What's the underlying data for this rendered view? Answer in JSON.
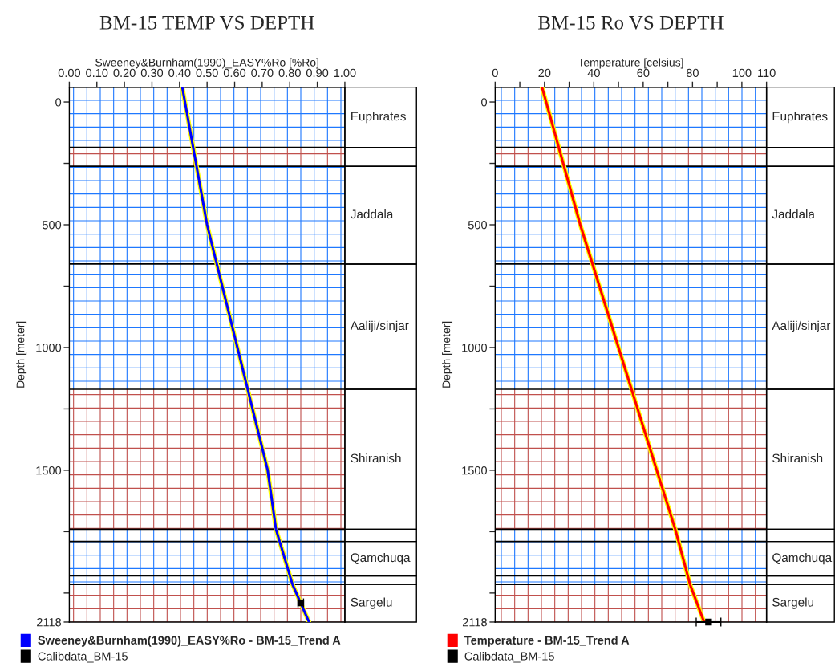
{
  "chart_data": [
    {
      "type": "line",
      "title": "BM-15 TEMP VS DEPTH",
      "xlabel": "Sweeney&Burnham(1990)_EASY%Ro [%Ro]",
      "ylabel": "Depth [meter]",
      "xlim": [
        0,
        1
      ],
      "xticks": [
        {
          "value": 0,
          "label": "0.00"
        },
        {
          "value": 0.1,
          "label": "0.10"
        },
        {
          "value": 0.2,
          "label": "0.20"
        },
        {
          "value": 0.3,
          "label": "0.30"
        },
        {
          "value": 0.4,
          "label": "0.40"
        },
        {
          "value": 0.5,
          "label": "0.50"
        },
        {
          "value": 0.6,
          "label": "0.60"
        },
        {
          "value": 0.7,
          "label": "0.70"
        },
        {
          "value": 0.8,
          "label": "0.80"
        },
        {
          "value": 0.9,
          "label": "0.90"
        },
        {
          "value": 1,
          "label": "1.00"
        }
      ],
      "ylim": [
        2118,
        -60
      ],
      "yticks": [
        0,
        {
          "value": 250,
          "label": null
        },
        500,
        {
          "value": 750,
          "label": null
        },
        1000,
        {
          "value": 1250,
          "label": null
        },
        1500,
        {
          "value": 1750,
          "label": null
        },
        {
          "value": 2000,
          "label": null
        },
        2118
      ],
      "series": [
        {
          "name": "Sweeney&Burnham(1990)_EASY%Ro - BM-15_Trend A",
          "color": "#0000ff",
          "x": [
            0.41,
            0.5,
            0.61,
            0.72,
            0.75,
            0.81,
            0.87
          ],
          "values": [
            -60,
            500,
            1000,
            1500,
            1740,
            1965,
            2118
          ]
        },
        {
          "name": "Calibdata_BM-15",
          "color": "#000000",
          "type": "scatter",
          "x": [
            0.84
          ],
          "values": [
            2040
          ],
          "xerrors": [
            0.01
          ]
        }
      ],
      "bands": [
        {
          "axis": "y",
          "from": -60,
          "to": 185,
          "label": "Euphrates",
          "color": "#1e78ff"
        },
        {
          "axis": "y",
          "from": 185,
          "to": 262,
          "label": null,
          "color": "#c0504d"
        },
        {
          "axis": "y",
          "from": 262,
          "to": 660,
          "label": "Jaddala",
          "color": "#1e78ff"
        },
        {
          "axis": "y",
          "from": 660,
          "to": 1170,
          "label": "Aaliji/sinjar",
          "color": "#1e78ff"
        },
        {
          "axis": "y",
          "from": 1170,
          "to": 1740,
          "label": "Shiranish",
          "color": "#c0504d"
        },
        {
          "axis": "y",
          "from": 1740,
          "to": 1790,
          "label": null,
          "color": "#1e78ff"
        },
        {
          "axis": "y",
          "from": 1790,
          "to": 1930,
          "label": "Qamchuqa",
          "color": "#1e78ff"
        },
        {
          "axis": "y",
          "from": 1930,
          "to": 1965,
          "label": null,
          "color": "#1e78ff"
        },
        {
          "axis": "y",
          "from": 1965,
          "to": 2118,
          "label": "Sargelu",
          "color": "#c0504d"
        }
      ],
      "legend": "bottom left",
      "grid": false
    },
    {
      "type": "line",
      "title": "BM-15 Ro VS DEPTH",
      "xlabel": "Temperature [celsius]",
      "ylabel": "Depth [meter]",
      "xlim": [
        0,
        110
      ],
      "xticks": [
        0,
        {
          "value": 10,
          "label": null
        },
        20,
        {
          "value": 30,
          "label": null
        },
        40,
        {
          "value": 50,
          "label": null
        },
        60,
        {
          "value": 70,
          "label": null
        },
        80,
        {
          "value": 90,
          "label": null
        },
        100,
        110
      ],
      "ylim": [
        2118,
        -60
      ],
      "yticks": [
        0,
        {
          "value": 250,
          "label": null
        },
        500,
        {
          "value": 750,
          "label": null
        },
        1000,
        {
          "value": 1250,
          "label": null
        },
        1500,
        {
          "value": 1750,
          "label": null
        },
        {
          "value": 2000,
          "label": null
        },
        2118
      ],
      "series": [
        {
          "name": "Temperature - BM-15_Trend A",
          "color": "#ff0000",
          "x": [
            19,
            34.5,
            50,
            65.5,
            73,
            79,
            84.7
          ],
          "values": [
            -60,
            500,
            1000,
            1500,
            1740,
            1965,
            2118
          ]
        },
        {
          "name": "Calibdata_BM-15",
          "color": "#000000",
          "type": "scatter",
          "x": [
            86.5
          ],
          "values": [
            2118
          ],
          "xerrors": [
            5
          ]
        }
      ],
      "bands": [
        {
          "axis": "y",
          "from": -60,
          "to": 185,
          "label": "Euphrates",
          "color": "#1e78ff"
        },
        {
          "axis": "y",
          "from": 185,
          "to": 262,
          "label": null,
          "color": "#c0504d"
        },
        {
          "axis": "y",
          "from": 262,
          "to": 660,
          "label": "Jaddala",
          "color": "#1e78ff"
        },
        {
          "axis": "y",
          "from": 660,
          "to": 1170,
          "label": "Aaliji/sinjar",
          "color": "#1e78ff"
        },
        {
          "axis": "y",
          "from": 1170,
          "to": 1740,
          "label": "Shiranish",
          "color": "#c0504d"
        },
        {
          "axis": "y",
          "from": 1740,
          "to": 1790,
          "label": null,
          "color": "#1e78ff"
        },
        {
          "axis": "y",
          "from": 1790,
          "to": 1930,
          "label": "Qamchuqa",
          "color": "#1e78ff"
        },
        {
          "axis": "y",
          "from": 1930,
          "to": 1965,
          "label": null,
          "color": "#1e78ff"
        },
        {
          "axis": "y",
          "from": 1965,
          "to": 2118,
          "label": "Sargelu",
          "color": "#c0504d"
        }
      ],
      "legend": "bottom left",
      "grid": false
    }
  ]
}
